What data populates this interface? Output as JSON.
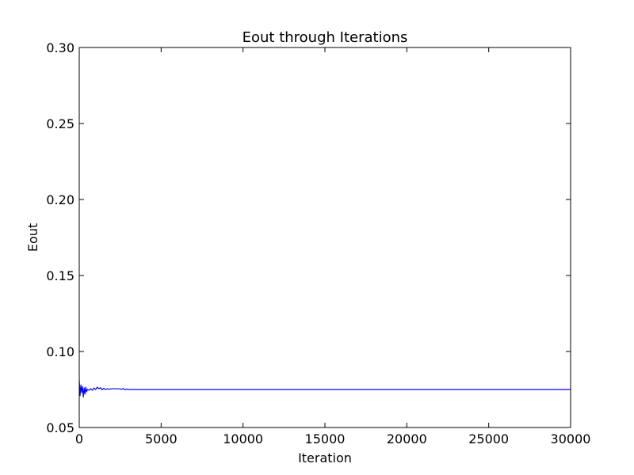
{
  "chart_data": {
    "type": "line",
    "title": "Eout through Iterations",
    "xlabel": "Iteration",
    "ylabel": "Eout",
    "xlim": [
      0,
      30000
    ],
    "ylim": [
      0.05,
      0.3
    ],
    "x_ticks": [
      0,
      5000,
      10000,
      15000,
      20000,
      25000,
      30000
    ],
    "x_tick_labels": [
      "0",
      "5000",
      "10000",
      "15000",
      "20000",
      "25000",
      "30000"
    ],
    "y_ticks": [
      0.05,
      0.1,
      0.15,
      0.2,
      0.25,
      0.3
    ],
    "y_tick_labels": [
      "0.05",
      "0.10",
      "0.15",
      "0.20",
      "0.25",
      "0.30"
    ],
    "grid": false,
    "legend": "none",
    "colors": {
      "series": "#0000ff",
      "frame": "#000000",
      "background": "#ffffff"
    },
    "series": [
      {
        "x": [
          0,
          50,
          100,
          150,
          200,
          250,
          300,
          350,
          400,
          450,
          500,
          600,
          700,
          800,
          900,
          1000,
          1100,
          1200,
          1300,
          1400,
          1500,
          1600,
          1700,
          1800,
          2000,
          2200,
          2400,
          2600,
          2700,
          2800,
          2900,
          3000,
          3100,
          3500,
          5000,
          10000,
          15000,
          20000,
          25000,
          30000
        ],
        "y": [
          0.081,
          0.071,
          0.078,
          0.073,
          0.077,
          0.07,
          0.076,
          0.072,
          0.0765,
          0.0735,
          0.075,
          0.0745,
          0.0755,
          0.0745,
          0.076,
          0.075,
          0.0765,
          0.0755,
          0.0762,
          0.0748,
          0.0758,
          0.075,
          0.0755,
          0.0752,
          0.0755,
          0.0755,
          0.0755,
          0.0752,
          0.0756,
          0.0748,
          0.0753,
          0.075,
          0.075,
          0.075,
          0.075,
          0.075,
          0.075,
          0.075,
          0.075,
          0.075
        ]
      }
    ]
  }
}
